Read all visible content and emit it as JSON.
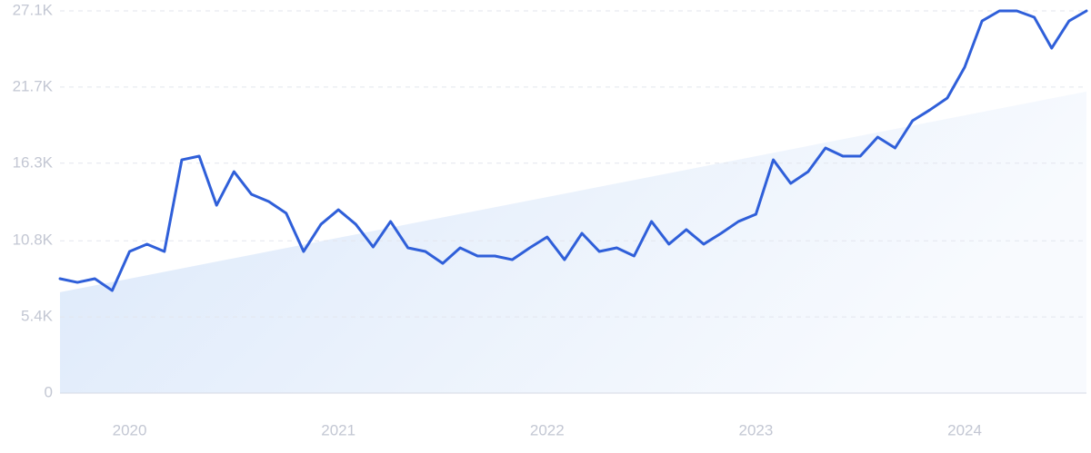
{
  "chart_data": {
    "type": "line",
    "categories": [
      null,
      null,
      null,
      null,
      "2020",
      null,
      null,
      null,
      null,
      null,
      null,
      null,
      null,
      null,
      null,
      null,
      "2021",
      null,
      null,
      null,
      null,
      null,
      null,
      null,
      null,
      null,
      null,
      null,
      "2022",
      null,
      null,
      null,
      null,
      null,
      null,
      null,
      null,
      null,
      null,
      null,
      "2023",
      null,
      null,
      null,
      null,
      null,
      null,
      null,
      null,
      null,
      null,
      null,
      "2024",
      null,
      null,
      null,
      null,
      null,
      null,
      null
    ],
    "series": [
      {
        "color": "#2f5fd9",
        "values": [
          8110,
          7850,
          8110,
          7270,
          10040,
          10560,
          10040,
          16540,
          16800,
          13320,
          15700,
          14100,
          13580,
          12750,
          10040,
          11970,
          13000,
          11970,
          10360,
          12170,
          10300,
          10040,
          9200,
          10300,
          9720,
          9720,
          9460,
          10300,
          11070,
          9460,
          11330,
          10040,
          10300,
          9720,
          12170,
          10560,
          11590,
          10560,
          11330,
          12170,
          12680,
          16540,
          14870,
          15700,
          17380,
          16800,
          16800,
          18150,
          17380,
          19310,
          20080,
          20920,
          23110,
          26390,
          27100,
          27100,
          26650,
          24460,
          26390,
          27100
        ]
      }
    ],
    "trend": [
      7150,
      21380
    ],
    "trend_color": "#dbe8fa",
    "ylim": [
      0,
      27100
    ],
    "yticks": [
      0,
      {
        "value": 5400,
        "label": "5.4K"
      },
      {
        "value": 10800,
        "label": "10.8K"
      },
      {
        "value": 16300,
        "label": "16.3K"
      },
      {
        "value": 21700,
        "label": "21.7K"
      },
      {
        "value": 27100,
        "label": "27.1K"
      }
    ],
    "grid": true
  }
}
